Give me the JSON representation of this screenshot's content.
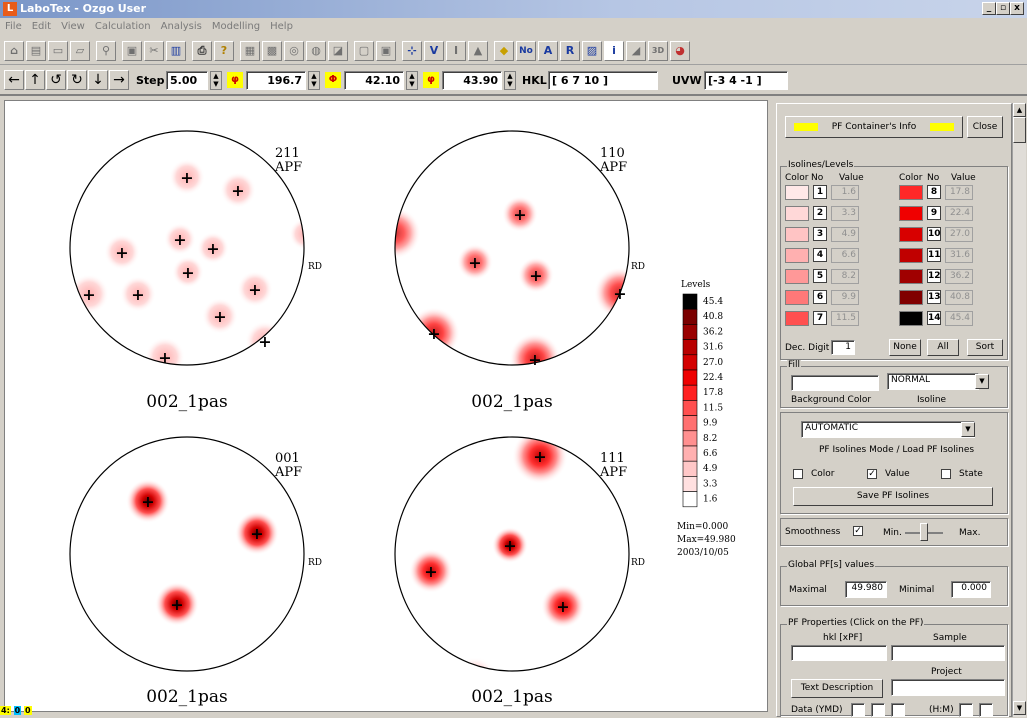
{
  "window": {
    "title": "LaboTex - Ozgo User",
    "app_icon_letter": "L",
    "controls": [
      "_",
      "3",
      "x"
    ]
  },
  "menu": [
    "File",
    "Edit",
    "View",
    "Calculation",
    "Analysis",
    "Modelling",
    "Help"
  ],
  "toolbar2": {
    "step_label": "Step",
    "step_value": "5.00",
    "phi1_value": "196.7",
    "Phi_value": "42.10",
    "phi2_value": "43.90",
    "hkl_label": "HKL",
    "hkl_value": "[ 6  7 10 ]",
    "uvw_label": "UVW",
    "uvw_value": "[-3  4 -1 ]"
  },
  "pole_figures": [
    {
      "hkl": "211",
      "type": "APF",
      "sample": "002_1pas",
      "rd": "RD"
    },
    {
      "hkl": "110",
      "type": "APF",
      "sample": "002_1pas",
      "rd": "RD"
    },
    {
      "hkl": "001",
      "type": "APF",
      "sample": "002_1pas",
      "rd": "RD"
    },
    {
      "hkl": "111",
      "type": "APF",
      "sample": "002_1pas",
      "rd": "RD"
    }
  ],
  "legend": {
    "title": "Levels",
    "levels": [
      "45.4",
      "40.8",
      "36.2",
      "31.6",
      "27.0",
      "22.4",
      "17.8",
      "11.5",
      "9.9",
      "8.2",
      "6.6",
      "4.9",
      "3.3",
      "1.6"
    ],
    "colors": [
      "#000000",
      "#7a0000",
      "#9a0000",
      "#b80000",
      "#d40000",
      "#ee0000",
      "#ff2020",
      "#ff5050",
      "#ff7070",
      "#ff9090",
      "#ffb0b0",
      "#ffc8c8",
      "#ffe0e0",
      "#ffffff"
    ],
    "min": "Min=0.000",
    "max": "Max=49.980",
    "date": "2003/10/05"
  },
  "panel": {
    "container_label": "PF Container's Info",
    "close": "Close",
    "isolines_title": "Isolines/Levels",
    "col_color": "Color",
    "col_no": "No",
    "col_value": "Value",
    "iso_left": [
      {
        "no": "1",
        "value": "1.6",
        "color": "#ffe8e8"
      },
      {
        "no": "2",
        "value": "3.3",
        "color": "#ffd8d8"
      },
      {
        "no": "3",
        "value": "4.9",
        "color": "#ffc4c4"
      },
      {
        "no": "4",
        "value": "6.6",
        "color": "#ffb0b0"
      },
      {
        "no": "5",
        "value": "8.2",
        "color": "#ff9898"
      },
      {
        "no": "6",
        "value": "9.9",
        "color": "#ff7878"
      },
      {
        "no": "7",
        "value": "11.5",
        "color": "#ff5050"
      }
    ],
    "iso_right": [
      {
        "no": "8",
        "value": "17.8",
        "color": "#ff2828"
      },
      {
        "no": "9",
        "value": "22.4",
        "color": "#f00000"
      },
      {
        "no": "10",
        "value": "27.0",
        "color": "#d80000"
      },
      {
        "no": "11",
        "value": "31.6",
        "color": "#c00000"
      },
      {
        "no": "12",
        "value": "36.2",
        "color": "#a00000"
      },
      {
        "no": "13",
        "value": "40.8",
        "color": "#800000"
      },
      {
        "no": "14",
        "value": "45.4",
        "color": "#000000"
      }
    ],
    "dec_digit_label": "Dec. Digit",
    "dec_digit_value": "1",
    "btn_none": "None",
    "btn_all": "All",
    "btn_sort": "Sort",
    "fill_title": "Fill",
    "fill_select": "NORMAL",
    "bg_color_label": "Background Color",
    "isoline_label": "Isoline",
    "mode_select": "AUTOMATIC",
    "mode_label": "PF Isolines Mode / Load PF Isolines",
    "chk_color": "Color",
    "chk_value": "Value",
    "chk_state": "State",
    "save_btn": "Save PF Isolines",
    "smooth_label": "Smoothness",
    "smooth_min": "Min.",
    "smooth_max": "Max.",
    "global_title": "Global PF[s] values",
    "maximal_label": "Maximal",
    "maximal_value": "49.980",
    "minimal_label": "Minimal",
    "minimal_value": "0.000",
    "props_title": "PF Properties  (Click on the PF)",
    "hkl_xpf_label": "hkl [xPF]",
    "sample_label": "Sample",
    "project_label": "Project",
    "text_desc_btn": "Text Description",
    "data_label": "Data (YMD)",
    "hm_label": "(H:M)"
  },
  "statusbar": [
    "4:",
    "0",
    "0"
  ]
}
